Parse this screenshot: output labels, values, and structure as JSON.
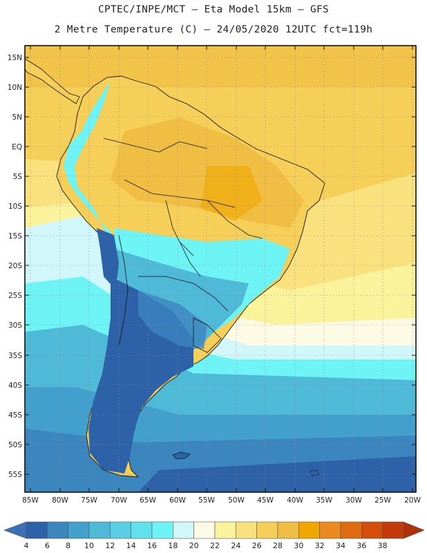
{
  "title_line1": "CPTEC/INPE/MCT –  Eta Model 15km – GFS",
  "title_line2": "2 Metre Temperature (C) – 24/05/2020 12UTC fct=119h",
  "lat_labels": [
    "15N",
    "10N",
    "5N",
    "EQ",
    "5S",
    "10S",
    "15S",
    "20S",
    "25S",
    "30S",
    "35S",
    "40S",
    "45S",
    "50S",
    "55S"
  ],
  "lon_labels": [
    "85W",
    "80W",
    "75W",
    "70W",
    "65W",
    "60W",
    "55W",
    "50W",
    "45W",
    "40W",
    "35W",
    "30W",
    "25W",
    "20W"
  ],
  "colorbar": {
    "labels": [
      "4",
      "6",
      "8",
      "10",
      "12",
      "14",
      "16",
      "18",
      "20",
      "22",
      "24",
      "26",
      "28",
      "30",
      "32",
      "34",
      "36",
      "38"
    ],
    "colors": [
      "#3a70b8",
      "#2e62a8",
      "#3c86c0",
      "#43a0cc",
      "#4fb9d8",
      "#58cfe2",
      "#60e3ec",
      "#6ff4f6",
      "#d2f7fb",
      "#fdfbe6",
      "#fbf39c",
      "#f9e27d",
      "#f5cf58",
      "#f0be42",
      "#f0a700",
      "#eb8a1f",
      "#df6a10",
      "#d24e0a",
      "#c2390a",
      "#b0300a"
    ]
  }
}
